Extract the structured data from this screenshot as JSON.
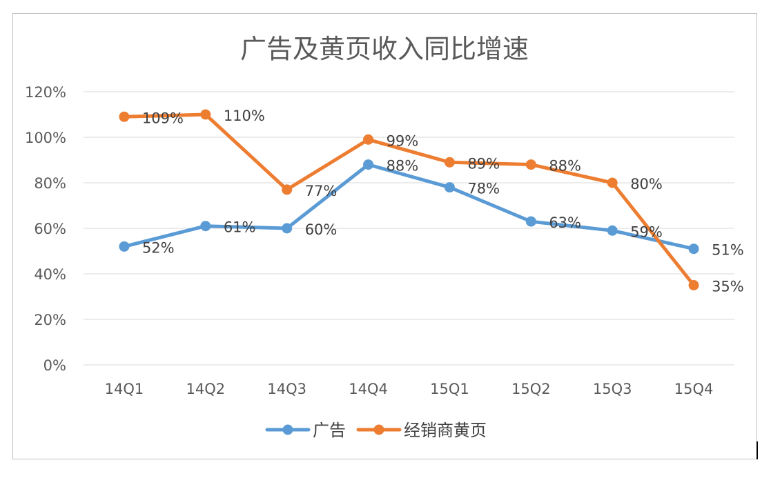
{
  "chart_data": {
    "type": "line",
    "title": "广告及黄页收入同比增速",
    "categories": [
      "14Q1",
      "14Q2",
      "14Q3",
      "14Q4",
      "15Q1",
      "15Q2",
      "15Q3",
      "15Q4"
    ],
    "y_ticks": [
      "0%",
      "20%",
      "40%",
      "60%",
      "80%",
      "100%",
      "120%"
    ],
    "ylim": [
      0,
      120
    ],
    "y_unit": "%",
    "grid": true,
    "legend_position": "bottom",
    "series": [
      {
        "name": "广告",
        "color": "#5b9bd5",
        "values": [
          52,
          61,
          60,
          88,
          78,
          63,
          59,
          51
        ],
        "labels": [
          "52%",
          "61%",
          "60%",
          "88%",
          "78%",
          "63%",
          "59%",
          "51%"
        ]
      },
      {
        "name": "经销商黄页",
        "color": "#ed7d31",
        "values": [
          109,
          110,
          77,
          99,
          89,
          88,
          80,
          35
        ],
        "labels": [
          "109%",
          "110%",
          "77%",
          "99%",
          "89%",
          "88%",
          "80%",
          "35%"
        ]
      }
    ]
  }
}
